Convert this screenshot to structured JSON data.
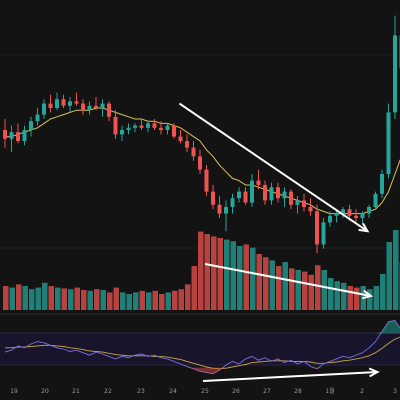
{
  "chart_data": [
    {
      "type": "candlestick",
      "title": "",
      "moving_average_color": "#d9c25a",
      "colors": {
        "up": "#26a69a",
        "down": "#ef5350",
        "annotation_arrow": "#ffffff"
      },
      "x_tick_labels": [
        "19",
        "20",
        "21",
        "22",
        "23",
        "24",
        "25",
        "26",
        "27",
        "28",
        "1월",
        "2",
        "3"
      ],
      "note": "candle OHLC values are relative (price axis not visible); index 0 = leftmost candle",
      "candles": [
        {
          "o": 0.5,
          "h": 0.55,
          "l": 0.42,
          "c": 0.46
        },
        {
          "o": 0.46,
          "h": 0.52,
          "l": 0.4,
          "c": 0.49
        },
        {
          "o": 0.49,
          "h": 0.53,
          "l": 0.44,
          "c": 0.45
        },
        {
          "o": 0.45,
          "h": 0.52,
          "l": 0.43,
          "c": 0.5
        },
        {
          "o": 0.5,
          "h": 0.56,
          "l": 0.47,
          "c": 0.54
        },
        {
          "o": 0.54,
          "h": 0.6,
          "l": 0.52,
          "c": 0.57
        },
        {
          "o": 0.57,
          "h": 0.64,
          "l": 0.55,
          "c": 0.62
        },
        {
          "o": 0.62,
          "h": 0.66,
          "l": 0.58,
          "c": 0.6
        },
        {
          "o": 0.6,
          "h": 0.67,
          "l": 0.59,
          "c": 0.64
        },
        {
          "o": 0.64,
          "h": 0.66,
          "l": 0.6,
          "c": 0.61
        },
        {
          "o": 0.61,
          "h": 0.65,
          "l": 0.58,
          "c": 0.63
        },
        {
          "o": 0.63,
          "h": 0.67,
          "l": 0.61,
          "c": 0.62
        },
        {
          "o": 0.62,
          "h": 0.64,
          "l": 0.57,
          "c": 0.59
        },
        {
          "o": 0.59,
          "h": 0.63,
          "l": 0.57,
          "c": 0.61
        },
        {
          "o": 0.61,
          "h": 0.65,
          "l": 0.59,
          "c": 0.6
        },
        {
          "o": 0.6,
          "h": 0.64,
          "l": 0.56,
          "c": 0.62
        },
        {
          "o": 0.62,
          "h": 0.63,
          "l": 0.54,
          "c": 0.56
        },
        {
          "o": 0.56,
          "h": 0.59,
          "l": 0.46,
          "c": 0.48
        },
        {
          "o": 0.48,
          "h": 0.52,
          "l": 0.45,
          "c": 0.5
        },
        {
          "o": 0.5,
          "h": 0.53,
          "l": 0.48,
          "c": 0.51
        },
        {
          "o": 0.51,
          "h": 0.53,
          "l": 0.49,
          "c": 0.52
        },
        {
          "o": 0.52,
          "h": 0.55,
          "l": 0.5,
          "c": 0.51
        },
        {
          "o": 0.51,
          "h": 0.54,
          "l": 0.49,
          "c": 0.53
        },
        {
          "o": 0.53,
          "h": 0.55,
          "l": 0.5,
          "c": 0.51
        },
        {
          "o": 0.51,
          "h": 0.54,
          "l": 0.48,
          "c": 0.5
        },
        {
          "o": 0.5,
          "h": 0.53,
          "l": 0.48,
          "c": 0.52
        },
        {
          "o": 0.52,
          "h": 0.53,
          "l": 0.46,
          "c": 0.47
        },
        {
          "o": 0.47,
          "h": 0.5,
          "l": 0.44,
          "c": 0.45
        },
        {
          "o": 0.45,
          "h": 0.48,
          "l": 0.4,
          "c": 0.42
        },
        {
          "o": 0.42,
          "h": 0.45,
          "l": 0.36,
          "c": 0.38
        },
        {
          "o": 0.38,
          "h": 0.41,
          "l": 0.3,
          "c": 0.32
        },
        {
          "o": 0.32,
          "h": 0.34,
          "l": 0.2,
          "c": 0.22
        },
        {
          "o": 0.22,
          "h": 0.25,
          "l": 0.14,
          "c": 0.16
        },
        {
          "o": 0.16,
          "h": 0.2,
          "l": 0.1,
          "c": 0.12
        },
        {
          "o": 0.12,
          "h": 0.18,
          "l": 0.04,
          "c": 0.15
        },
        {
          "o": 0.15,
          "h": 0.21,
          "l": 0.12,
          "c": 0.19
        },
        {
          "o": 0.19,
          "h": 0.24,
          "l": 0.17,
          "c": 0.22
        },
        {
          "o": 0.22,
          "h": 0.24,
          "l": 0.16,
          "c": 0.17
        },
        {
          "o": 0.17,
          "h": 0.3,
          "l": 0.15,
          "c": 0.27
        },
        {
          "o": 0.27,
          "h": 0.32,
          "l": 0.23,
          "c": 0.25
        },
        {
          "o": 0.25,
          "h": 0.27,
          "l": 0.16,
          "c": 0.18
        },
        {
          "o": 0.18,
          "h": 0.26,
          "l": 0.16,
          "c": 0.24
        },
        {
          "o": 0.24,
          "h": 0.26,
          "l": 0.17,
          "c": 0.19
        },
        {
          "o": 0.19,
          "h": 0.24,
          "l": 0.15,
          "c": 0.22
        },
        {
          "o": 0.22,
          "h": 0.23,
          "l": 0.14,
          "c": 0.16
        },
        {
          "o": 0.16,
          "h": 0.2,
          "l": 0.12,
          "c": 0.18
        },
        {
          "o": 0.18,
          "h": 0.21,
          "l": 0.13,
          "c": 0.15
        },
        {
          "o": 0.15,
          "h": 0.19,
          "l": 0.11,
          "c": 0.13
        },
        {
          "o": 0.13,
          "h": 0.16,
          "l": -0.06,
          "c": -0.02
        },
        {
          "o": -0.02,
          "h": 0.1,
          "l": -0.04,
          "c": 0.08
        },
        {
          "o": 0.08,
          "h": 0.13,
          "l": 0.06,
          "c": 0.11
        },
        {
          "o": 0.11,
          "h": 0.14,
          "l": 0.08,
          "c": 0.12
        },
        {
          "o": 0.12,
          "h": 0.15,
          "l": 0.1,
          "c": 0.14
        },
        {
          "o": 0.14,
          "h": 0.16,
          "l": 0.09,
          "c": 0.11
        },
        {
          "o": 0.11,
          "h": 0.14,
          "l": 0.08,
          "c": 0.1
        },
        {
          "o": 0.1,
          "h": 0.13,
          "l": 0.07,
          "c": 0.12
        },
        {
          "o": 0.12,
          "h": 0.16,
          "l": 0.1,
          "c": 0.15
        },
        {
          "o": 0.15,
          "h": 0.22,
          "l": 0.14,
          "c": 0.21
        },
        {
          "o": 0.21,
          "h": 0.32,
          "l": 0.19,
          "c": 0.3
        },
        {
          "o": 0.3,
          "h": 0.62,
          "l": 0.28,
          "c": 0.58
        },
        {
          "o": 0.58,
          "h": 1.02,
          "l": 0.55,
          "c": 0.93
        },
        {
          "o": 0.93,
          "h": 0.96,
          "l": 0.74,
          "c": 0.78
        }
      ],
      "moving_average": [
        0.47,
        0.47,
        0.48,
        0.49,
        0.5,
        0.51,
        0.53,
        0.55,
        0.56,
        0.57,
        0.58,
        0.59,
        0.59,
        0.59,
        0.6,
        0.6,
        0.59,
        0.58,
        0.57,
        0.56,
        0.55,
        0.55,
        0.54,
        0.54,
        0.53,
        0.53,
        0.52,
        0.51,
        0.49,
        0.47,
        0.45,
        0.41,
        0.38,
        0.34,
        0.31,
        0.28,
        0.27,
        0.25,
        0.25,
        0.24,
        0.23,
        0.22,
        0.21,
        0.2,
        0.19,
        0.18,
        0.17,
        0.16,
        0.14,
        0.13,
        0.12,
        0.12,
        0.12,
        0.12,
        0.12,
        0.12,
        0.13,
        0.14,
        0.17,
        0.22,
        0.3,
        0.38
      ],
      "volume": [
        0.3,
        0.28,
        0.32,
        0.3,
        0.26,
        0.28,
        0.34,
        0.3,
        0.28,
        0.27,
        0.26,
        0.28,
        0.25,
        0.24,
        0.26,
        0.25,
        0.22,
        0.28,
        0.22,
        0.2,
        0.22,
        0.24,
        0.22,
        0.24,
        0.2,
        0.22,
        0.24,
        0.26,
        0.32,
        0.55,
        0.98,
        0.95,
        0.92,
        0.9,
        0.88,
        0.86,
        0.8,
        0.82,
        0.78,
        0.7,
        0.66,
        0.62,
        0.55,
        0.6,
        0.52,
        0.5,
        0.48,
        0.44,
        0.56,
        0.5,
        0.4,
        0.36,
        0.34,
        0.3,
        0.28,
        0.3,
        0.26,
        0.3,
        0.45,
        0.85,
        1.0,
        0.6
      ],
      "annotations": [
        {
          "type": "arrow",
          "panel": "price",
          "from_index": 33,
          "to_index": 55,
          "trend": "down"
        },
        {
          "type": "arrow",
          "panel": "volume",
          "from_index": 32,
          "to_index": 56,
          "trend": "down"
        },
        {
          "type": "arrow",
          "panel": "oscillator",
          "from_index": 32,
          "to_index": 57,
          "trend": "up"
        }
      ],
      "oscillator": {
        "line": [
          0.45,
          0.48,
          0.55,
          0.52,
          0.58,
          0.62,
          0.6,
          0.56,
          0.52,
          0.5,
          0.46,
          0.48,
          0.44,
          0.4,
          0.45,
          0.42,
          0.38,
          0.34,
          0.38,
          0.36,
          0.4,
          0.42,
          0.38,
          0.4,
          0.36,
          0.34,
          0.3,
          0.26,
          0.22,
          0.18,
          0.14,
          0.12,
          0.1,
          0.16,
          0.24,
          0.3,
          0.26,
          0.34,
          0.38,
          0.32,
          0.36,
          0.3,
          0.34,
          0.28,
          0.32,
          0.26,
          0.3,
          0.22,
          0.18,
          0.26,
          0.3,
          0.34,
          0.38,
          0.36,
          0.4,
          0.44,
          0.52,
          0.62,
          0.78,
          0.94,
          0.96,
          0.8
        ],
        "signal": [
          0.52,
          0.52,
          0.53,
          0.53,
          0.54,
          0.55,
          0.56,
          0.56,
          0.55,
          0.54,
          0.52,
          0.51,
          0.49,
          0.47,
          0.46,
          0.45,
          0.43,
          0.41,
          0.4,
          0.39,
          0.39,
          0.39,
          0.39,
          0.38,
          0.38,
          0.37,
          0.35,
          0.33,
          0.3,
          0.27,
          0.24,
          0.21,
          0.19,
          0.18,
          0.19,
          0.21,
          0.23,
          0.25,
          0.28,
          0.29,
          0.3,
          0.31,
          0.31,
          0.31,
          0.3,
          0.3,
          0.3,
          0.29,
          0.27,
          0.27,
          0.28,
          0.29,
          0.31,
          0.32,
          0.34,
          0.36,
          0.39,
          0.44,
          0.51,
          0.59,
          0.66,
          0.7
        ]
      }
    }
  ]
}
